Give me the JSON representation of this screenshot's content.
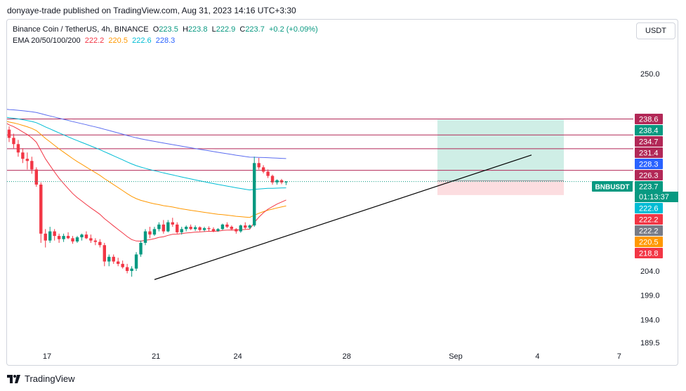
{
  "header": {
    "publisher_line": "donyaye-trade published on TradingView.com, Aug 31, 2023 14:16 UTC+3:30"
  },
  "legend": {
    "title": "Binance Coin / TetherUS, 4h, BINANCE",
    "open_label": "O",
    "open": "223.5",
    "high_label": "H",
    "high": "223.8",
    "low_label": "L",
    "low": "222.9",
    "close_label": "C",
    "close": "223.7",
    "change": "+0.2 (+0.09%)",
    "ema_label": "EMA 20/50/100/200",
    "ema20": "222.2",
    "ema50": "220.5",
    "ema100": "222.6",
    "ema200": "228.3"
  },
  "currency_button": "USDT",
  "footer": {
    "brand": "TradingView"
  },
  "colors": {
    "up": "#089981",
    "down": "#f23645",
    "ema20": "#f23645",
    "ema50": "#ff9800",
    "ema100": "#00bcd4",
    "ema200": "#5b6cf0",
    "level": "#b22857",
    "trendline": "#000000",
    "profit_zone": "#cfeee6",
    "loss_zone": "#fcdde0"
  },
  "chart_data": {
    "type": "candlestick",
    "symbol": "BNBUSDT",
    "timeframe": "4h",
    "x_tick_labels": [
      "17",
      "21",
      "24",
      "28",
      "Sep",
      "4",
      "7"
    ],
    "y_tick_labels": [
      "250.0",
      "204.0",
      "199.0",
      "194.0",
      "189.5"
    ],
    "y_scale": "log",
    "ylim": [
      188.2,
      254
    ],
    "horizontal_levels": [
      238.6,
      234.7,
      231.4,
      226.3
    ],
    "position": {
      "entry": 223.9,
      "target": 238.4,
      "stop": 220.6
    },
    "trendline": {
      "from_price": 202.2,
      "to_price": 229.9
    },
    "price_badges": [
      {
        "value": "238.6",
        "color": "#b22857"
      },
      {
        "value": "238.4",
        "color": "#089981"
      },
      {
        "value": "234.7",
        "color": "#b22857"
      },
      {
        "value": "231.4",
        "color": "#b22857"
      },
      {
        "value": "228.3",
        "color": "#2962ff"
      },
      {
        "value": "226.3",
        "color": "#b22857"
      },
      {
        "value": "223.7",
        "color": "#089981"
      },
      {
        "value": "222.6",
        "color": "#00bcd4"
      },
      {
        "value": "222.2",
        "color": "#f23645"
      },
      {
        "value": "222.2",
        "color": "#787b86"
      },
      {
        "value": "220.5",
        "color": "#ff9800"
      },
      {
        "value": "218.8",
        "color": "#f23645"
      }
    ],
    "last_price_label": "BNBUSDT",
    "last_price_countdown": "01:13:37",
    "candles": [
      [
        236.0,
        236.8,
        233.0,
        234.0
      ],
      [
        234.0,
        235.0,
        231.5,
        232.5
      ],
      [
        232.5,
        233.5,
        229.5,
        230.5
      ],
      [
        230.5,
        231.5,
        228.0,
        229.0
      ],
      [
        229.0,
        230.5,
        226.5,
        228.5
      ],
      [
        228.5,
        229.5,
        225.5,
        226.5
      ],
      [
        226.5,
        227.0,
        222.5,
        223.0
      ],
      [
        223.0,
        223.5,
        210.0,
        212.0
      ],
      [
        212.0,
        213.0,
        209.0,
        210.5
      ],
      [
        210.5,
        213.5,
        210.0,
        212.5
      ],
      [
        212.5,
        213.0,
        210.5,
        211.5
      ],
      [
        211.5,
        212.0,
        210.0,
        210.8
      ],
      [
        210.8,
        212.0,
        210.2,
        211.5
      ],
      [
        211.5,
        212.3,
        210.8,
        211.0
      ],
      [
        211.0,
        211.5,
        209.8,
        210.3
      ],
      [
        210.3,
        211.5,
        210.0,
        211.2
      ],
      [
        211.2,
        212.0,
        210.5,
        211.8
      ],
      [
        211.8,
        212.5,
        210.8,
        211.0
      ],
      [
        211.0,
        211.8,
        210.0,
        210.5
      ],
      [
        210.5,
        211.0,
        209.5,
        210.2
      ],
      [
        210.2,
        210.8,
        209.0,
        209.5
      ],
      [
        209.5,
        210.0,
        205.0,
        206.0
      ],
      [
        206.0,
        207.5,
        205.0,
        207.0
      ],
      [
        207.0,
        207.5,
        205.5,
        206.0
      ],
      [
        206.0,
        206.8,
        205.0,
        205.5
      ],
      [
        205.5,
        206.2,
        204.5,
        204.8
      ],
      [
        204.8,
        205.5,
        203.5,
        204.0
      ],
      [
        204.0,
        205.0,
        202.8,
        204.5
      ],
      [
        204.5,
        208.0,
        204.0,
        207.5
      ],
      [
        207.5,
        210.5,
        207.0,
        210.0
      ],
      [
        210.0,
        213.0,
        209.5,
        212.5
      ],
      [
        212.5,
        213.5,
        211.0,
        211.8
      ],
      [
        211.8,
        213.5,
        211.5,
        213.0
      ],
      [
        213.0,
        214.5,
        212.5,
        214.0
      ],
      [
        214.0,
        215.0,
        212.0,
        212.5
      ],
      [
        212.5,
        215.0,
        212.3,
        214.5
      ],
      [
        214.5,
        215.5,
        213.5,
        214.0
      ],
      [
        214.0,
        214.5,
        212.0,
        212.3
      ],
      [
        212.3,
        213.5,
        211.8,
        213.0
      ],
      [
        213.0,
        213.8,
        212.5,
        213.5
      ],
      [
        213.5,
        214.0,
        212.8,
        213.0
      ],
      [
        213.0,
        213.8,
        212.6,
        213.4
      ],
      [
        213.4,
        213.6,
        212.5,
        212.8
      ],
      [
        212.8,
        213.5,
        212.5,
        213.2
      ],
      [
        213.2,
        213.6,
        212.6,
        213.0
      ],
      [
        213.0,
        213.4,
        212.3,
        212.6
      ],
      [
        212.6,
        213.2,
        212.4,
        213.0
      ],
      [
        213.0,
        214.2,
        212.8,
        214.0
      ],
      [
        214.0,
        214.5,
        213.2,
        213.5
      ],
      [
        213.5,
        213.8,
        212.7,
        213.0
      ],
      [
        213.0,
        213.2,
        212.0,
        212.5
      ],
      [
        212.5,
        214.0,
        212.2,
        213.8
      ],
      [
        213.8,
        214.5,
        213.0,
        213.3
      ],
      [
        213.3,
        214.0,
        213.0,
        213.8
      ],
      [
        213.8,
        229.5,
        213.5,
        228.0
      ],
      [
        228.0,
        229.2,
        226.5,
        227.0
      ],
      [
        227.0,
        227.5,
        225.6,
        226.0
      ],
      [
        226.0,
        226.5,
        224.5,
        225.0
      ],
      [
        225.0,
        225.3,
        223.0,
        223.5
      ],
      [
        223.5,
        224.2,
        223.0,
        224.0
      ],
      [
        224.0,
        224.3,
        223.1,
        223.5
      ],
      [
        223.5,
        223.8,
        222.9,
        223.7
      ]
    ]
  }
}
